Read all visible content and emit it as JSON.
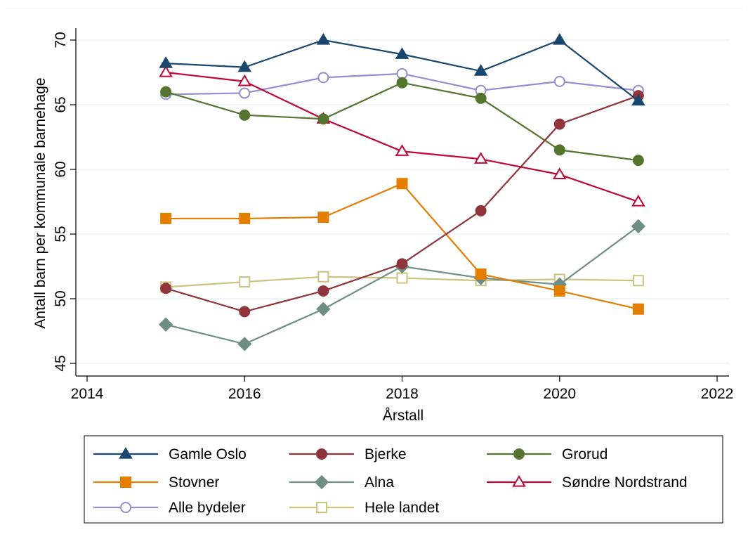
{
  "chart_data": {
    "type": "line",
    "title": "",
    "xlabel": "Årstall",
    "ylabel": "Antall barn per kommunale barnehage",
    "xlim": [
      2014,
      2022
    ],
    "ylim": [
      45,
      70
    ],
    "x_ticks": [
      2014,
      2016,
      2018,
      2020,
      2022
    ],
    "y_ticks": [
      45,
      50,
      55,
      60,
      65,
      70
    ],
    "grid": "horizontal",
    "legend_position": "bottom",
    "x": [
      2015,
      2016,
      2017,
      2018,
      2019,
      2020,
      2021
    ],
    "series": [
      {
        "name": "Gamle Oslo",
        "color": "#1a476f",
        "marker": "triangle-filled",
        "values": [
          68.2,
          67.9,
          70.0,
          68.9,
          67.6,
          70.0,
          65.3
        ]
      },
      {
        "name": "Bjerke",
        "color": "#90353b",
        "marker": "circle-filled",
        "values": [
          50.8,
          49.0,
          50.6,
          52.7,
          56.8,
          63.5,
          65.7
        ]
      },
      {
        "name": "Grorud",
        "color": "#55752f",
        "marker": "circle-filled",
        "values": [
          66.0,
          64.2,
          63.9,
          66.7,
          65.5,
          61.5,
          60.7
        ]
      },
      {
        "name": "Stovner",
        "color": "#e37e00",
        "marker": "square-filled",
        "values": [
          56.2,
          56.2,
          56.3,
          58.9,
          51.9,
          50.6,
          49.2
        ]
      },
      {
        "name": "Alna",
        "color": "#6e8e84",
        "marker": "diamond-filled",
        "values": [
          48.0,
          46.5,
          49.2,
          52.5,
          51.6,
          51.1,
          55.6
        ]
      },
      {
        "name": "Søndre Nordstrand",
        "color": "#c10534",
        "marker": "triangle-hollow",
        "values": [
          67.5,
          66.8,
          63.9,
          61.4,
          60.8,
          59.6,
          57.5
        ]
      },
      {
        "name": "Alle bydeler",
        "color": "#938dd2",
        "marker": "circle-hollow",
        "values": [
          65.8,
          65.9,
          67.1,
          67.4,
          66.1,
          66.8,
          66.1
        ]
      },
      {
        "name": "Hele landet",
        "color": "#cac27e",
        "marker": "square-hollow",
        "values": [
          50.9,
          51.3,
          51.7,
          51.6,
          51.4,
          51.5,
          51.4
        ]
      }
    ]
  }
}
